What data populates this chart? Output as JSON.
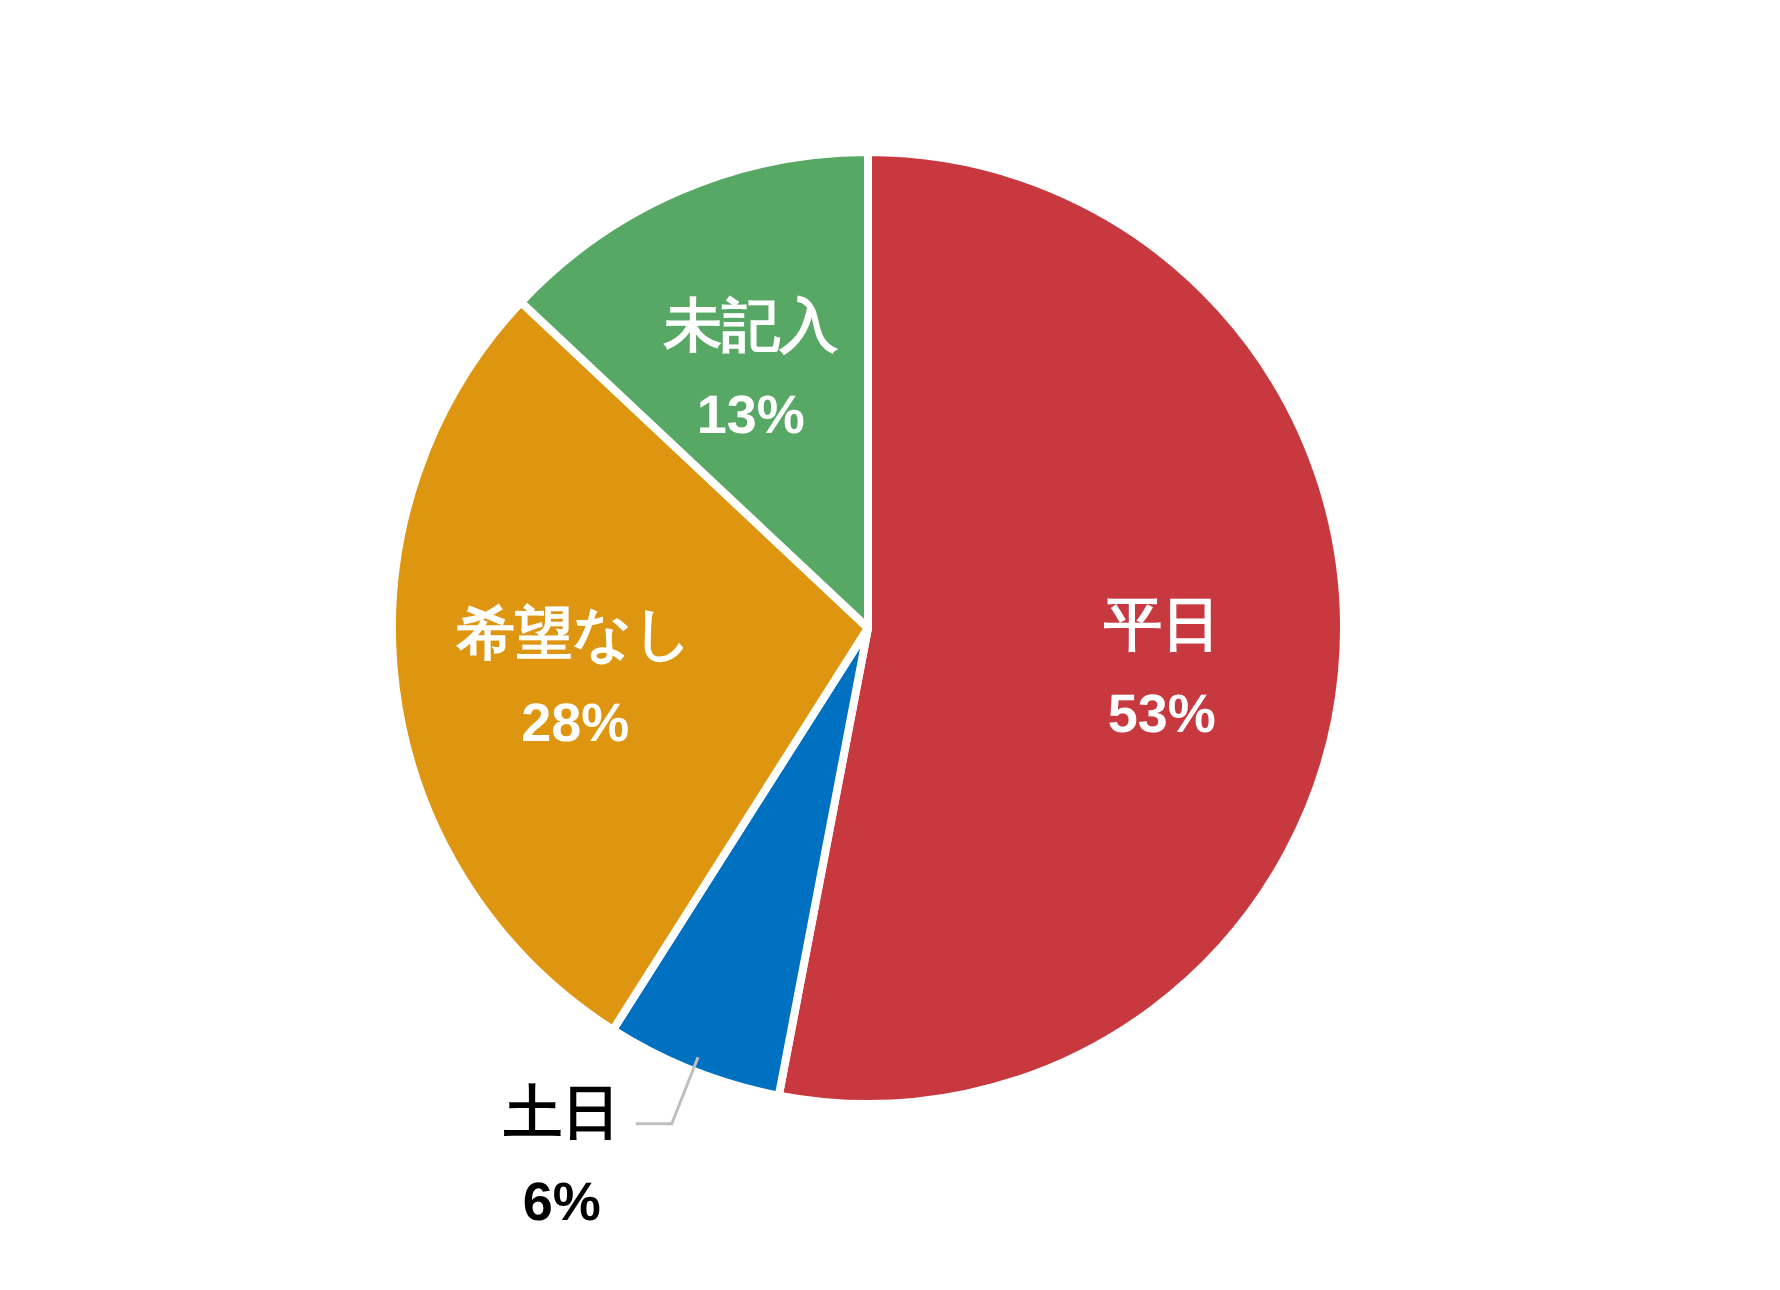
{
  "chart_data": {
    "type": "pie",
    "categories": [
      "平日",
      "土日",
      "希望なし",
      "未記入"
    ],
    "values": [
      53,
      6,
      28,
      13
    ],
    "colors": [
      "#c8383f",
      "#0070c0",
      "#de9610",
      "#57a865"
    ],
    "value_labels": [
      "53%",
      "6%",
      "28%",
      "13%"
    ]
  }
}
